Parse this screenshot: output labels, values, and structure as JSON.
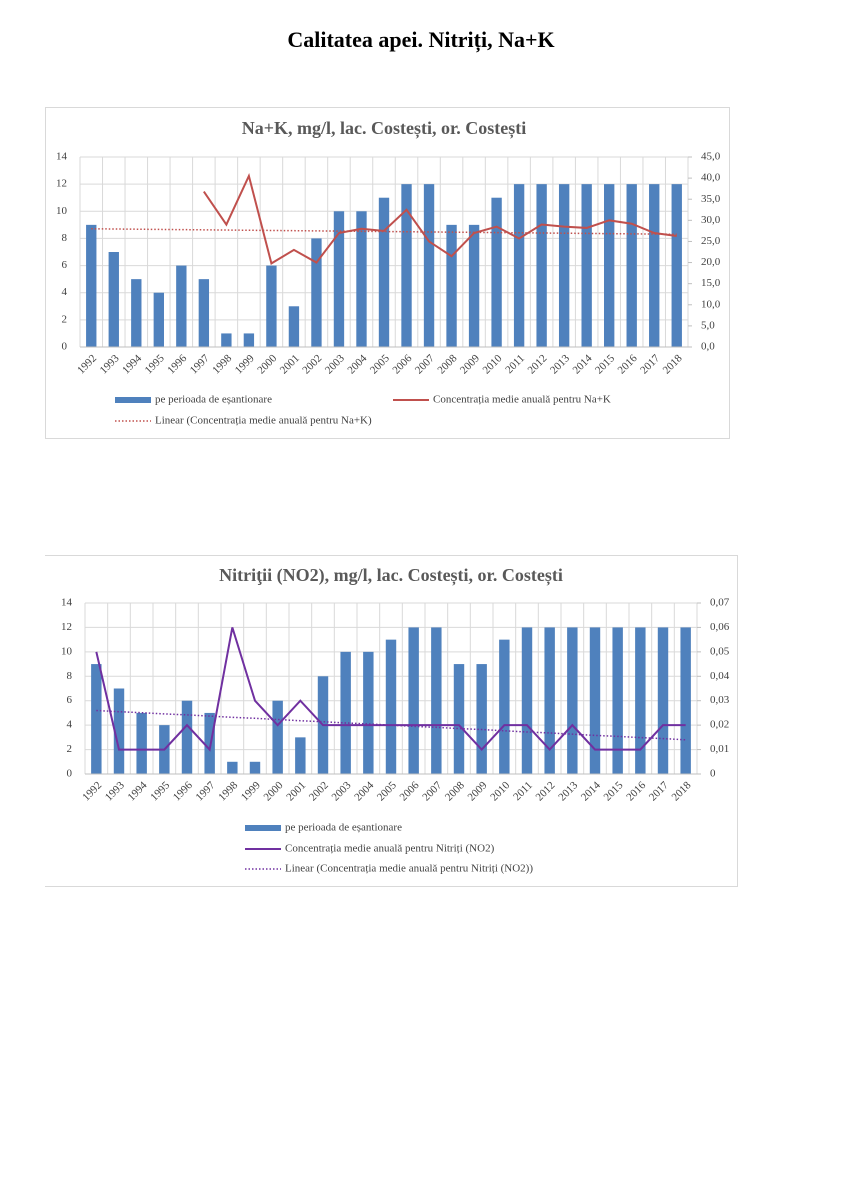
{
  "title": "Calitatea apei. Nitriți, Na+K",
  "chart_data": [
    {
      "type": "combo",
      "title": "Na+K, mg/l, lac. Costești, or. Costești",
      "grid": true,
      "categories": [
        "1992",
        "1993",
        "1994",
        "1995",
        "1996",
        "1997",
        "1998",
        "1999",
        "2000",
        "2001",
        "2002",
        "2003",
        "2004",
        "2005",
        "2006",
        "2007",
        "2008",
        "2009",
        "2010",
        "2011",
        "2012",
        "2013",
        "2014",
        "2015",
        "2016",
        "2017",
        "2018"
      ],
      "ylim": [
        0,
        14
      ],
      "yticks": [
        0,
        2,
        4,
        6,
        8,
        10,
        12,
        14
      ],
      "y2lim": [
        0,
        45
      ],
      "y2ticks": [
        {
          "value": 0,
          "label": "0,0"
        },
        {
          "value": 5,
          "label": "5,0"
        },
        {
          "value": 10,
          "label": "10,0"
        },
        {
          "value": 15,
          "label": "15,0"
        },
        {
          "value": 20,
          "label": "20,0"
        },
        {
          "value": 25,
          "label": "25,0"
        },
        {
          "value": 30,
          "label": "30,0"
        },
        {
          "value": 35,
          "label": "35,0"
        },
        {
          "value": 40,
          "label": "40,0"
        },
        {
          "value": 45,
          "label": "45,0"
        }
      ],
      "series": [
        {
          "name": "pe perioada de eșantionare",
          "type": "bar",
          "color": "#4f81bd",
          "values": [
            9,
            7,
            5,
            4,
            6,
            5,
            1,
            1,
            6,
            3,
            8,
            10,
            10,
            11,
            12,
            12,
            9,
            9,
            11,
            12,
            12,
            12,
            12,
            12,
            12,
            12,
            12
          ]
        },
        {
          "name": "Concentrația medie anuală pentru Na+K",
          "type": "line",
          "axis": "y2",
          "color": "#c0504d",
          "values": [
            null,
            null,
            null,
            null,
            null,
            36.8,
            29,
            40.5,
            19.8,
            23,
            20,
            27,
            28,
            27.5,
            32.5,
            25,
            21.5,
            27,
            28.5,
            25.7,
            29,
            28.5,
            28.2,
            30,
            29.2,
            27,
            26.3
          ]
        },
        {
          "name": "Linear (Concentrația medie anuală pentru Na+K)",
          "type": "line",
          "style": "dotted",
          "axis": "y2",
          "color": "#c0504d",
          "values": [
            28.0,
            27.95,
            27.9,
            27.85,
            27.8,
            27.75,
            27.7,
            27.65,
            27.6,
            27.55,
            27.5,
            27.45,
            27.4,
            27.35,
            27.3,
            27.25,
            27.2,
            27.15,
            27.1,
            27.05,
            27.0,
            26.95,
            26.9,
            26.85,
            26.8,
            26.75,
            26.7
          ]
        }
      ]
    },
    {
      "type": "combo",
      "title": "Nitriţii (NO2), mg/l, lac. Costești, or. Costești",
      "grid": true,
      "categories": [
        "1992",
        "1993",
        "1994",
        "1995",
        "1996",
        "1997",
        "1998",
        "1999",
        "2000",
        "2001",
        "2002",
        "2003",
        "2004",
        "2005",
        "2006",
        "2007",
        "2008",
        "2009",
        "2010",
        "2011",
        "2012",
        "2013",
        "2014",
        "2015",
        "2016",
        "2017",
        "2018"
      ],
      "ylim": [
        0,
        14
      ],
      "yticks": [
        0,
        2,
        4,
        6,
        8,
        10,
        12,
        14
      ],
      "y2lim": [
        0,
        0.07
      ],
      "y2ticks": [
        0,
        {
          "value": 0.01,
          "label": "0,01"
        },
        {
          "value": 0.02,
          "label": "0,02"
        },
        {
          "value": 0.03,
          "label": "0,03"
        },
        {
          "value": 0.04,
          "label": "0,04"
        },
        {
          "value": 0.05,
          "label": "0,05"
        },
        {
          "value": 0.06,
          "label": "0,06"
        },
        {
          "value": 0.07,
          "label": "0,07"
        }
      ],
      "series": [
        {
          "name": "pe perioada de eșantionare",
          "type": "bar",
          "color": "#4f81bd",
          "values": [
            9,
            7,
            5,
            4,
            6,
            5,
            1,
            1,
            6,
            3,
            8,
            10,
            10,
            11,
            12,
            12,
            9,
            9,
            11,
            12,
            12,
            12,
            12,
            12,
            12,
            12,
            12
          ]
        },
        {
          "name": "Concentrația medie anuală pentru Nitriți (NO2)",
          "type": "line",
          "axis": "y2",
          "color": "#7030a0",
          "values": [
            0.05,
            0.01,
            0.01,
            0.01,
            0.02,
            0.01,
            0.06,
            0.03,
            0.02,
            0.03,
            0.02,
            0.02,
            0.02,
            0.02,
            0.02,
            0.02,
            0.02,
            0.01,
            0.02,
            0.02,
            0.01,
            0.02,
            0.01,
            0.01,
            0.01,
            0.02,
            0.02
          ]
        },
        {
          "name": "Linear (Concentrația medie anuală pentru Nitriți (NO2))",
          "type": "line",
          "style": "dotted",
          "axis": "y2",
          "color": "#7030a0",
          "values": [
            0.026,
            0.0255,
            0.0251,
            0.0246,
            0.0242,
            0.0237,
            0.0232,
            0.0228,
            0.0223,
            0.0218,
            0.0214,
            0.0209,
            0.0205,
            0.02,
            0.0195,
            0.0191,
            0.0186,
            0.0182,
            0.0177,
            0.0172,
            0.0168,
            0.0163,
            0.0158,
            0.0154,
            0.0149,
            0.0145,
            0.014
          ]
        }
      ]
    }
  ]
}
